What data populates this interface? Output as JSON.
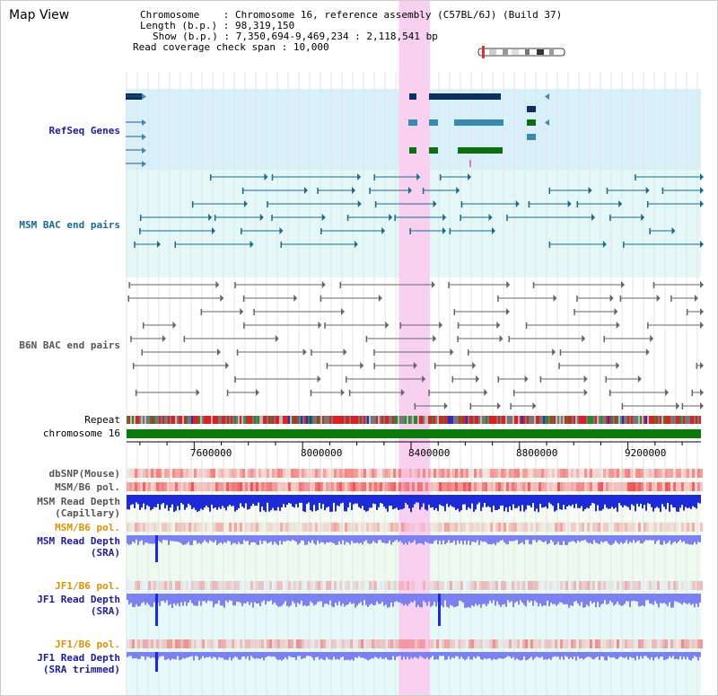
{
  "page": {
    "title": "Map View"
  },
  "info": {
    "chromosome_key": "Chromosome",
    "chromosome_value": "Chromosome 16, reference assembly (C57BL/6J) (Build 37)",
    "length_key": "Length (b.p.)",
    "length_value": "98,319,150",
    "show_key": "Show (b.p.)",
    "show_value": "7,350,694-9,469,234 : 2,118,541 bp",
    "coverage_key": "Read coverage check span",
    "coverage_value": "10,000"
  },
  "tracks": {
    "refseq": "RefSeq Genes",
    "msm_bac": "MSM BAC end pairs",
    "b6n_bac": "B6N BAC end pairs",
    "repeat": "Repeat",
    "chromosome": "chromosome 16",
    "dbsnp": "dbSNP(Mouse)",
    "msm_pol1": "MSM/B6 pol.",
    "msm_cap_1": "MSM Read Depth",
    "msm_cap_2": "(Capillary)",
    "msm_pol2": "MSM/B6 pol.",
    "msm_sra_1": "MSM Read Depth",
    "msm_sra_2": "(SRA)",
    "jf1_pol1": "JF1/B6 pol.",
    "jf1_sra_1": "JF1 Read Depth",
    "jf1_sra_2": "(SRA)",
    "jf1_pol2": "JF1/B6 pol.",
    "jf1_trim_1": "JF1 Read Depth",
    "jf1_trim_2": "(SRA trimmed)"
  },
  "axis": {
    "ticks": [
      "7600000",
      "8000000",
      "8400000",
      "8800000",
      "9200000"
    ],
    "view_start": 7350694,
    "view_end": 9469234,
    "highlight_start": 8355000,
    "highlight_end": 8470000
  },
  "colors": {
    "refseq_bg": "#d8f0fa",
    "msm_bg": "#e4f8f8",
    "jf1_bg": "#e6fafa",
    "msm_sra_bg": "#eefaee",
    "highlight": "#f8d0f0",
    "gene_dark": "#0c3060",
    "gene_mid": "#3a8ab0",
    "gene_green": "#0c7010",
    "bac_msm": "#1a6a8c",
    "bac_b6n": "#666666",
    "chromosome_bar": "#0a7a0a",
    "depth_dark": "#1d2ad8",
    "depth_light": "#7c80f0",
    "pol_red": "#f07070"
  }
}
